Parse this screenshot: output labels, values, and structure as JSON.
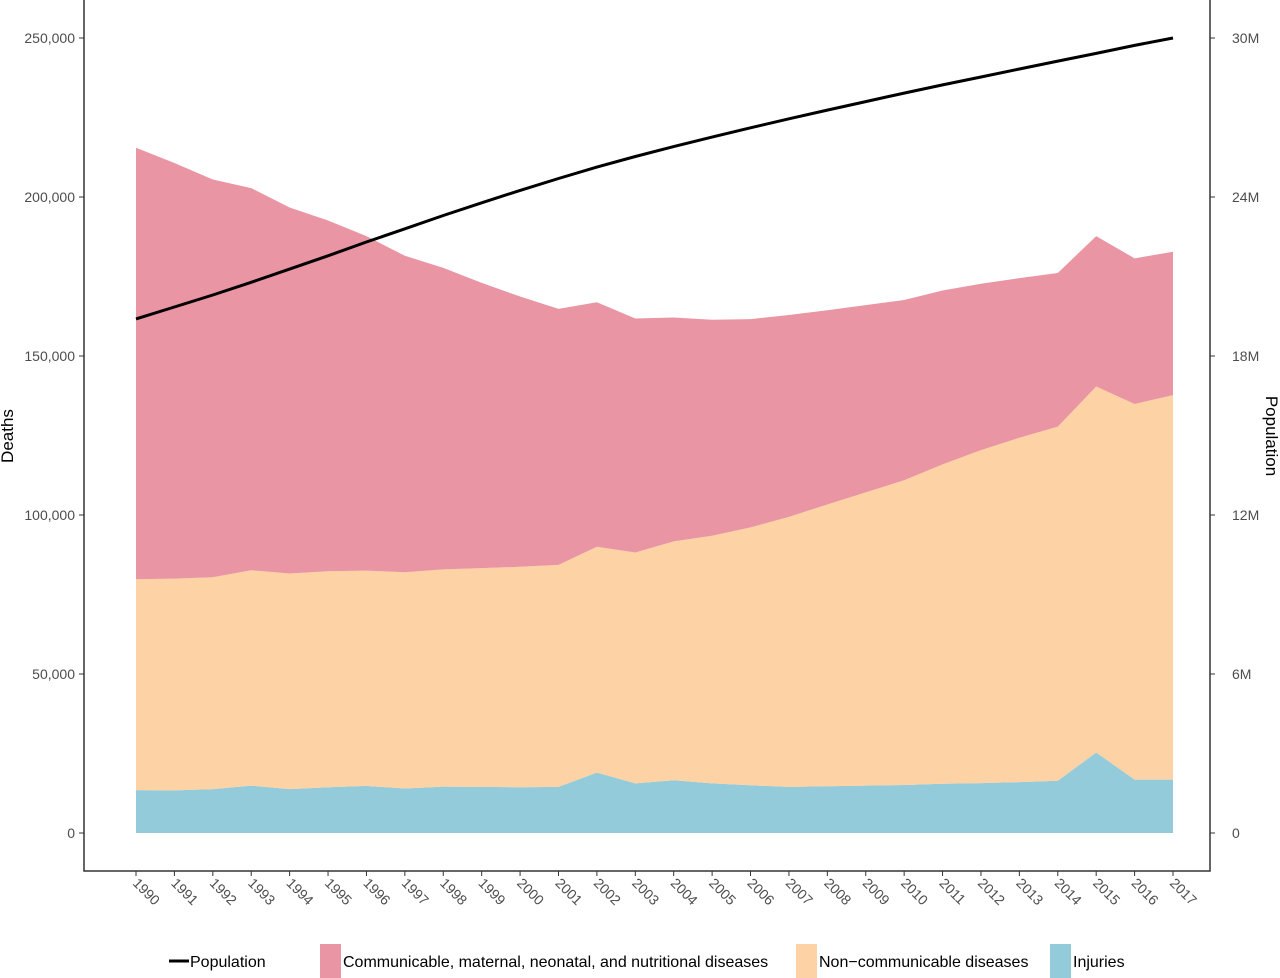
{
  "chart_data": {
    "type": "area",
    "stacked": true,
    "x": [
      1990,
      1991,
      1992,
      1993,
      1994,
      1995,
      1996,
      1997,
      1998,
      1999,
      2000,
      2001,
      2002,
      2003,
      2004,
      2005,
      2006,
      2007,
      2008,
      2009,
      2010,
      2011,
      2012,
      2013,
      2014,
      2015,
      2016,
      2017
    ],
    "series": [
      {
        "name": "Injuries",
        "color": "#94cbdb",
        "values": [
          13500,
          13400,
          13800,
          14900,
          13800,
          14400,
          14800,
          14000,
          14600,
          14500,
          14400,
          14500,
          19000,
          15600,
          16600,
          15600,
          15000,
          14500,
          14700,
          14900,
          15100,
          15500,
          15700,
          16000,
          16400,
          25300,
          16800,
          16800
        ]
      },
      {
        "name": "Non−communicable diseases",
        "color": "#fdd2a4",
        "values": [
          66300,
          66600,
          66600,
          67700,
          67800,
          67900,
          67700,
          68000,
          68300,
          68800,
          69300,
          69800,
          71000,
          72600,
          75100,
          77900,
          81100,
          84900,
          88600,
          92200,
          95800,
          100400,
          104700,
          108300,
          111400,
          115100,
          118100,
          120900
        ]
      },
      {
        "name": "Communicable, maternal, neonatal, and nutritional diseases",
        "color": "#e995a4",
        "values": [
          135700,
          130700,
          125100,
          120200,
          115100,
          110300,
          105200,
          99500,
          94800,
          89700,
          85000,
          80500,
          76900,
          73600,
          70400,
          67900,
          65500,
          63500,
          61100,
          58900,
          56700,
          54700,
          52300,
          50200,
          48300,
          47300,
          45800,
          45100
        ]
      }
    ],
    "line_series": {
      "name": "Population",
      "color": "#000000",
      "axis": "right",
      "values": [
        19400000,
        19850000,
        20300000,
        20780000,
        21280000,
        21780000,
        22300000,
        22800000,
        23300000,
        23780000,
        24250000,
        24700000,
        25130000,
        25530000,
        25900000,
        26260000,
        26610000,
        26950000,
        27280000,
        27600000,
        27920000,
        28230000,
        28530000,
        28830000,
        29130000,
        29420000,
        29720000,
        30000000
      ]
    },
    "ylabel": "Deaths",
    "ylim": [
      0,
      260000
    ],
    "y_ticks": [
      0,
      50000,
      100000,
      150000,
      200000,
      250000
    ],
    "y_tick_labels": [
      "0",
      "50,000",
      "100,000",
      "150,000",
      "200,000",
      "250,000"
    ],
    "y2label": "Population",
    "y2lim": [
      0,
      31200000
    ],
    "y2_ticks": [
      0,
      6000000,
      12000000,
      18000000,
      24000000,
      30000000
    ],
    "y2_tick_labels": [
      "0",
      "6M",
      "12M",
      "18M",
      "24M",
      "30M"
    ],
    "x_tick_labels": [
      "1990",
      "1991",
      "1992",
      "1993",
      "1994",
      "1995",
      "1996",
      "1997",
      "1998",
      "1999",
      "2000",
      "2001",
      "2002",
      "2003",
      "2004",
      "2005",
      "2006",
      "2007",
      "2008",
      "2009",
      "2010",
      "2011",
      "2012",
      "2013",
      "2014",
      "2015",
      "2016",
      "2017"
    ],
    "grid": false,
    "legend": {
      "placement": "bottom",
      "items": [
        {
          "label": "Population",
          "kind": "line",
          "color": "#000000"
        },
        {
          "label": "Communicable, maternal, neonatal, and nutritional diseases",
          "kind": "box",
          "color": "#e995a4"
        },
        {
          "label": "Non−communicable diseases",
          "kind": "box",
          "color": "#fdd2a4"
        },
        {
          "label": "Injuries",
          "kind": "box",
          "color": "#94cbdb"
        }
      ]
    }
  }
}
